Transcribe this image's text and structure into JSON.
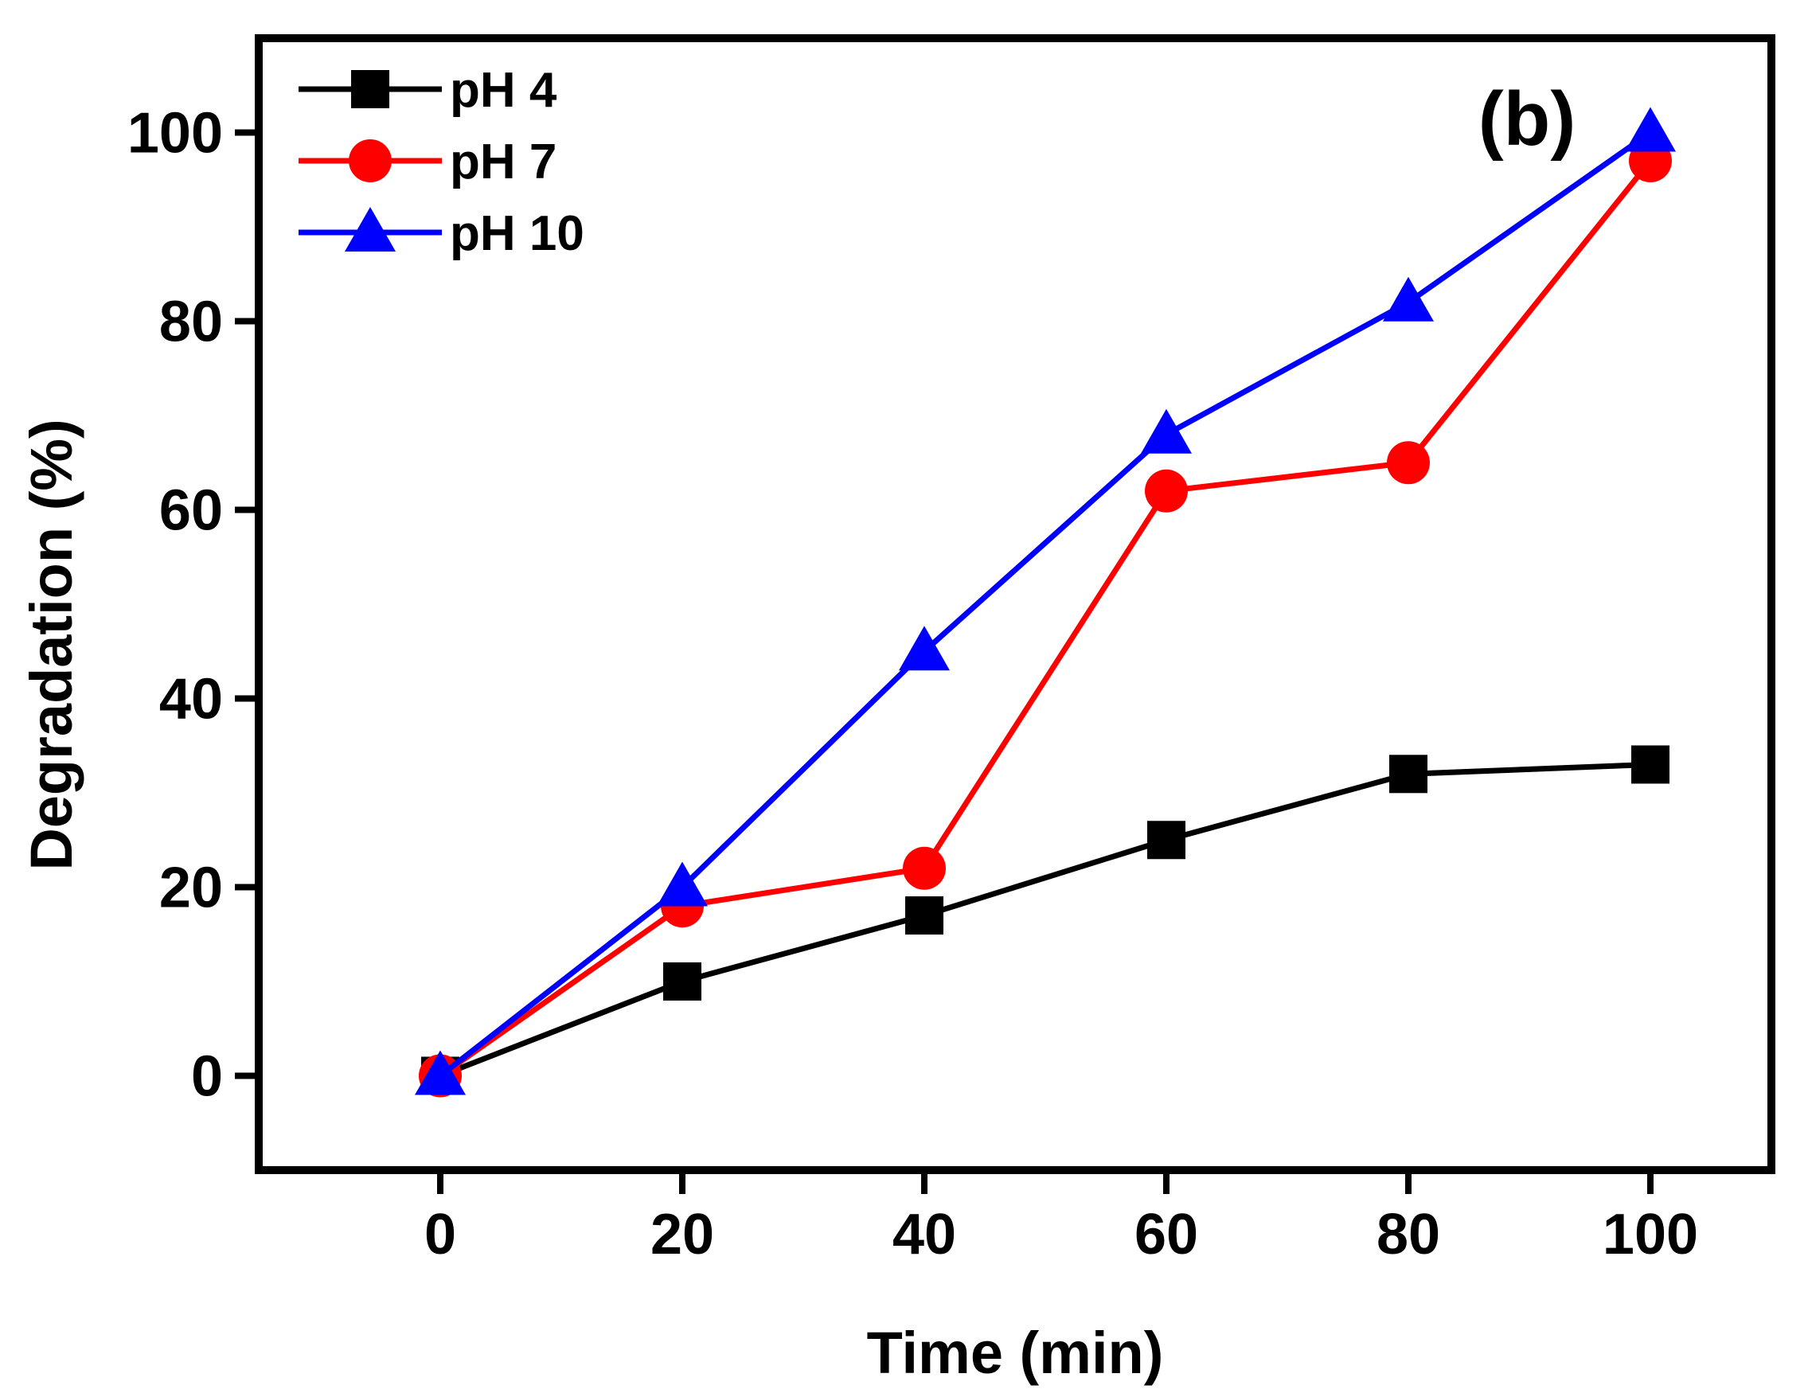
{
  "chart_data": {
    "type": "line",
    "title": "",
    "panel_label": "(b)",
    "xlabel": "Time (min)",
    "ylabel": "Degradation (%)",
    "xlim": [
      -15,
      110
    ],
    "ylim": [
      -10,
      110
    ],
    "x": [
      0,
      20,
      40,
      60,
      80,
      100
    ],
    "xticks": [
      0,
      20,
      40,
      60,
      80,
      100
    ],
    "yticks": [
      0,
      20,
      40,
      60,
      80,
      100
    ],
    "grid": false,
    "legend_position": "top-left",
    "series": [
      {
        "name": "pH 4",
        "values": [
          0,
          10,
          17,
          25,
          32,
          33
        ],
        "color": "#000000",
        "marker": "square"
      },
      {
        "name": "pH 7",
        "values": [
          0,
          18,
          22,
          62,
          65,
          97
        ],
        "color": "#ff0000",
        "marker": "circle"
      },
      {
        "name": "pH 10",
        "values": [
          0,
          20,
          45,
          68,
          82,
          100
        ],
        "color": "#0000ff",
        "marker": "triangle"
      }
    ]
  }
}
